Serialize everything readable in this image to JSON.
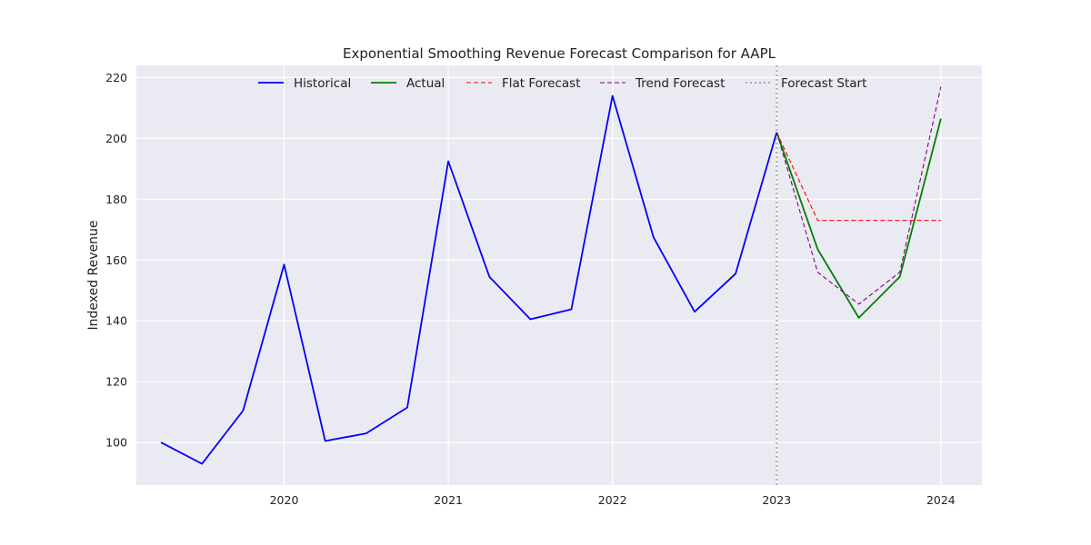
{
  "chart_data": {
    "type": "line",
    "title": "Exponential Smoothing Revenue Forecast Comparison for AAPL",
    "xlabel": "",
    "ylabel": "Indexed Revenue",
    "xlim": [
      2019.1,
      2024.25
    ],
    "ylim": [
      86,
      224
    ],
    "x_ticks": [
      2020,
      2021,
      2022,
      2023,
      2024
    ],
    "x_tick_labels": [
      "2020",
      "2021",
      "2022",
      "2023",
      "2024"
    ],
    "y_ticks": [
      100,
      120,
      140,
      160,
      180,
      200,
      220
    ],
    "y_tick_labels": [
      "100",
      "120",
      "140",
      "160",
      "180",
      "200",
      "220"
    ],
    "grid": true,
    "legend_position": "top-center",
    "series": [
      {
        "name": "Historical",
        "color": "#0000ff",
        "style": "solid",
        "points": [
          [
            2019.25,
            100
          ],
          [
            2019.5,
            93
          ],
          [
            2019.75,
            110.5
          ],
          [
            2020.0,
            158.5
          ],
          [
            2020.25,
            100.5
          ],
          [
            2020.5,
            103
          ],
          [
            2020.75,
            111.5
          ],
          [
            2021.0,
            192.5
          ],
          [
            2021.25,
            154.5
          ],
          [
            2021.5,
            140.5
          ],
          [
            2021.75,
            143.8
          ],
          [
            2022.0,
            214
          ],
          [
            2022.25,
            167.5
          ],
          [
            2022.5,
            143
          ],
          [
            2022.75,
            155.5
          ],
          [
            2023.0,
            202
          ]
        ]
      },
      {
        "name": "Actual",
        "color": "#008000",
        "style": "solid",
        "points": [
          [
            2023.0,
            202
          ],
          [
            2023.25,
            163.5
          ],
          [
            2023.5,
            141
          ],
          [
            2023.75,
            154.5
          ],
          [
            2024.0,
            206.5
          ]
        ]
      },
      {
        "name": "Flat Forecast",
        "color": "#ff0000",
        "style": "dashed",
        "points": [
          [
            2023.0,
            202
          ],
          [
            2023.25,
            173
          ],
          [
            2023.5,
            173
          ],
          [
            2023.75,
            173
          ],
          [
            2024.0,
            173
          ]
        ]
      },
      {
        "name": "Trend Forecast",
        "color": "#800080",
        "style": "dashed",
        "points": [
          [
            2023.0,
            202
          ],
          [
            2023.25,
            156
          ],
          [
            2023.5,
            145.5
          ],
          [
            2023.75,
            156
          ],
          [
            2024.0,
            217
          ]
        ]
      }
    ],
    "vlines": [
      {
        "name": "Forecast Start",
        "x": 2023.0,
        "color": "#aaaaaa",
        "style": "dotted"
      }
    ],
    "legend": [
      {
        "label": "Historical",
        "color": "#0000ff",
        "style": "solid"
      },
      {
        "label": "Actual",
        "color": "#008000",
        "style": "solid"
      },
      {
        "label": "Flat Forecast",
        "color": "#ff0000",
        "style": "dashed"
      },
      {
        "label": "Trend Forecast",
        "color": "#800080",
        "style": "dashed"
      },
      {
        "label": "Forecast Start",
        "color": "#aaaaaa",
        "style": "dotted"
      }
    ]
  }
}
